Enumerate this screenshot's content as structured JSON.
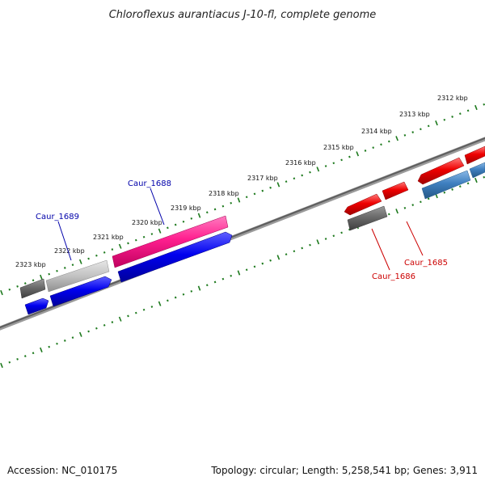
{
  "title": "Chloroflexus aurantiacus J-10-fl, complete genome",
  "footer": {
    "accession": "Accession: NC_010175",
    "stats": "Topology: circular; Length: 5,258,541 bp; Genes: 3,911"
  },
  "ruler_labels": [
    "2312 kbp",
    "2313 kbp",
    "2314 kbp",
    "2315 kbp",
    "2316 kbp",
    "2317 kbp",
    "2318 kbp",
    "2319 kbp",
    "2320 kbp",
    "2321 kbp",
    "2322 kbp",
    "2323 kbp"
  ],
  "gene_labels": {
    "caur_1689": "Caur_1689",
    "caur_1688": "Caur_1688",
    "caur_1686": "Caur_1686",
    "caur_1685": "Caur_1685"
  },
  "colors": {
    "backbone": "#6e6e6e",
    "tick_green": "#1e7a1e",
    "blue_label": "#0000aa",
    "red_label": "#cc0000",
    "gene_pink": "#ff1f8f",
    "gene_blue": "#0000ee",
    "gene_red": "#ee0000",
    "gene_dark_gray": "#555555",
    "gene_light_gray": "#c4c4c4",
    "gene_steel_blue": "#3f7fbf"
  }
}
